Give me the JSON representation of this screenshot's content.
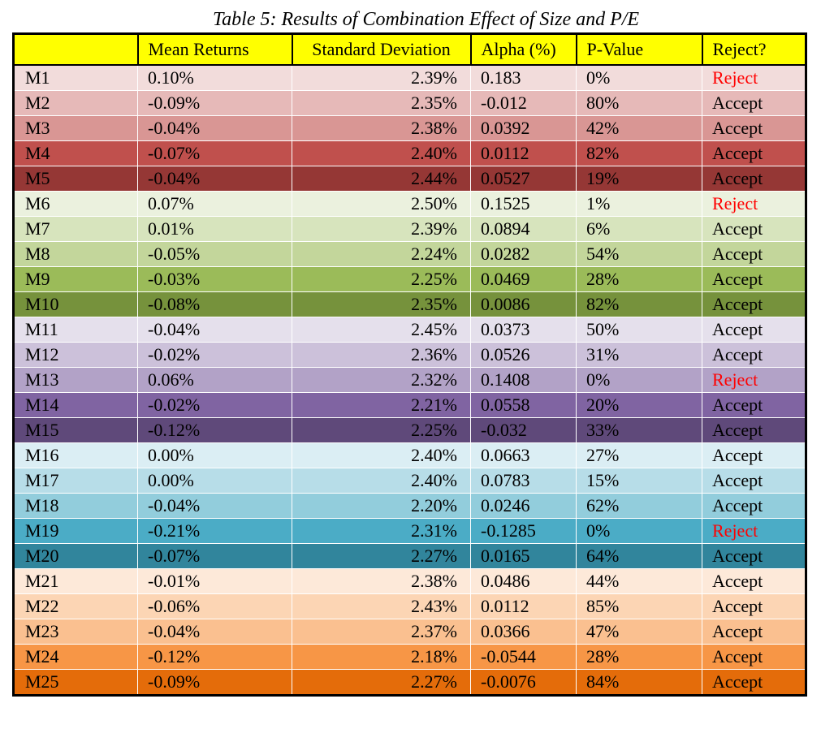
{
  "caption": "Table 5: Results of Combination Effect of Size and P/E",
  "headers": [
    "",
    "Mean Returns",
    "Standard Deviation",
    "Alpha (%)",
    "P-Value",
    "Reject?"
  ],
  "colors": {
    "header_bg": "#ffff00",
    "reject_text": "#ff0000",
    "border": "#000000"
  },
  "rows": [
    {
      "id": "M1",
      "mean": "0.10%",
      "std": "2.39%",
      "alpha": "0.183",
      "pvalue": "0%",
      "decision": "Reject",
      "bg": "#f2dcdb",
      "fg": "#000000"
    },
    {
      "id": "M2",
      "mean": "-0.09%",
      "std": "2.35%",
      "alpha": "-0.012",
      "pvalue": "80%",
      "decision": "Accept",
      "bg": "#e6b9b8",
      "fg": "#000000"
    },
    {
      "id": "M3",
      "mean": "-0.04%",
      "std": "2.38%",
      "alpha": "0.0392",
      "pvalue": "42%",
      "decision": "Accept",
      "bg": "#d99694",
      "fg": "#000000"
    },
    {
      "id": "M4",
      "mean": "-0.07%",
      "std": "2.40%",
      "alpha": "0.0112",
      "pvalue": "82%",
      "decision": "Accept",
      "bg": "#c0504d",
      "fg": "#000000"
    },
    {
      "id": "M5",
      "mean": "-0.04%",
      "std": "2.44%",
      "alpha": "0.0527",
      "pvalue": "19%",
      "decision": "Accept",
      "bg": "#953735",
      "fg": "#000000"
    },
    {
      "id": "M6",
      "mean": "0.07%",
      "std": "2.50%",
      "alpha": "0.1525",
      "pvalue": "1%",
      "decision": "Reject",
      "bg": "#ebf1de",
      "fg": "#000000"
    },
    {
      "id": "M7",
      "mean": "0.01%",
      "std": "2.39%",
      "alpha": "0.0894",
      "pvalue": "6%",
      "decision": "Accept",
      "bg": "#d7e4bd",
      "fg": "#000000"
    },
    {
      "id": "M8",
      "mean": "-0.05%",
      "std": "2.24%",
      "alpha": "0.0282",
      "pvalue": "54%",
      "decision": "Accept",
      "bg": "#c3d69b",
      "fg": "#000000"
    },
    {
      "id": "M9",
      "mean": "-0.03%",
      "std": "2.25%",
      "alpha": "0.0469",
      "pvalue": "28%",
      "decision": "Accept",
      "bg": "#9bbb59",
      "fg": "#000000"
    },
    {
      "id": "M10",
      "mean": "-0.08%",
      "std": "2.35%",
      "alpha": "0.0086",
      "pvalue": "82%",
      "decision": "Accept",
      "bg": "#76923c",
      "fg": "#000000"
    },
    {
      "id": "M11",
      "mean": "-0.04%",
      "std": "2.45%",
      "alpha": "0.0373",
      "pvalue": "50%",
      "decision": "Accept",
      "bg": "#e5e0ec",
      "fg": "#000000"
    },
    {
      "id": "M12",
      "mean": "-0.02%",
      "std": "2.36%",
      "alpha": "0.0526",
      "pvalue": "31%",
      "decision": "Accept",
      "bg": "#ccc1da",
      "fg": "#000000"
    },
    {
      "id": "M13",
      "mean": "0.06%",
      "std": "2.32%",
      "alpha": "0.1408",
      "pvalue": "0%",
      "decision": "Reject",
      "bg": "#b2a2c7",
      "fg": "#000000"
    },
    {
      "id": "M14",
      "mean": "-0.02%",
      "std": "2.21%",
      "alpha": "0.0558",
      "pvalue": "20%",
      "decision": "Accept",
      "bg": "#8064a2",
      "fg": "#000000"
    },
    {
      "id": "M15",
      "mean": "-0.12%",
      "std": "2.25%",
      "alpha": "-0.032",
      "pvalue": "33%",
      "decision": "Accept",
      "bg": "#5f497a",
      "fg": "#000000"
    },
    {
      "id": "M16",
      "mean": "0.00%",
      "std": "2.40%",
      "alpha": "0.0663",
      "pvalue": "27%",
      "decision": "Accept",
      "bg": "#dbeef4",
      "fg": "#000000"
    },
    {
      "id": "M17",
      "mean": "0.00%",
      "std": "2.40%",
      "alpha": "0.0783",
      "pvalue": "15%",
      "decision": "Accept",
      "bg": "#b7dde8",
      "fg": "#000000"
    },
    {
      "id": "M18",
      "mean": "-0.04%",
      "std": "2.20%",
      "alpha": "0.0246",
      "pvalue": "62%",
      "decision": "Accept",
      "bg": "#92cddc",
      "fg": "#000000"
    },
    {
      "id": "M19",
      "mean": "-0.21%",
      "std": "2.31%",
      "alpha": "-0.1285",
      "pvalue": "0%",
      "decision": "Reject",
      "bg": "#4bacc6",
      "fg": "#000000"
    },
    {
      "id": "M20",
      "mean": "-0.07%",
      "std": "2.27%",
      "alpha": "0.0165",
      "pvalue": "64%",
      "decision": "Accept",
      "bg": "#31859c",
      "fg": "#000000"
    },
    {
      "id": "M21",
      "mean": "-0.01%",
      "std": "2.38%",
      "alpha": "0.0486",
      "pvalue": "44%",
      "decision": "Accept",
      "bg": "#fde9d9",
      "fg": "#000000"
    },
    {
      "id": "M22",
      "mean": "-0.06%",
      "std": "2.43%",
      "alpha": "0.0112",
      "pvalue": "85%",
      "decision": "Accept",
      "bg": "#fcd5b4",
      "fg": "#000000"
    },
    {
      "id": "M23",
      "mean": "-0.04%",
      "std": "2.37%",
      "alpha": "0.0366",
      "pvalue": "47%",
      "decision": "Accept",
      "bg": "#fac090",
      "fg": "#000000"
    },
    {
      "id": "M24",
      "mean": "-0.12%",
      "std": "2.18%",
      "alpha": "-0.0544",
      "pvalue": "28%",
      "decision": "Accept",
      "bg": "#f79646",
      "fg": "#000000"
    },
    {
      "id": "M25",
      "mean": "-0.09%",
      "std": "2.27%",
      "alpha": "-0.0076",
      "pvalue": "84%",
      "decision": "Accept",
      "bg": "#e46c0a",
      "fg": "#000000"
    }
  ]
}
